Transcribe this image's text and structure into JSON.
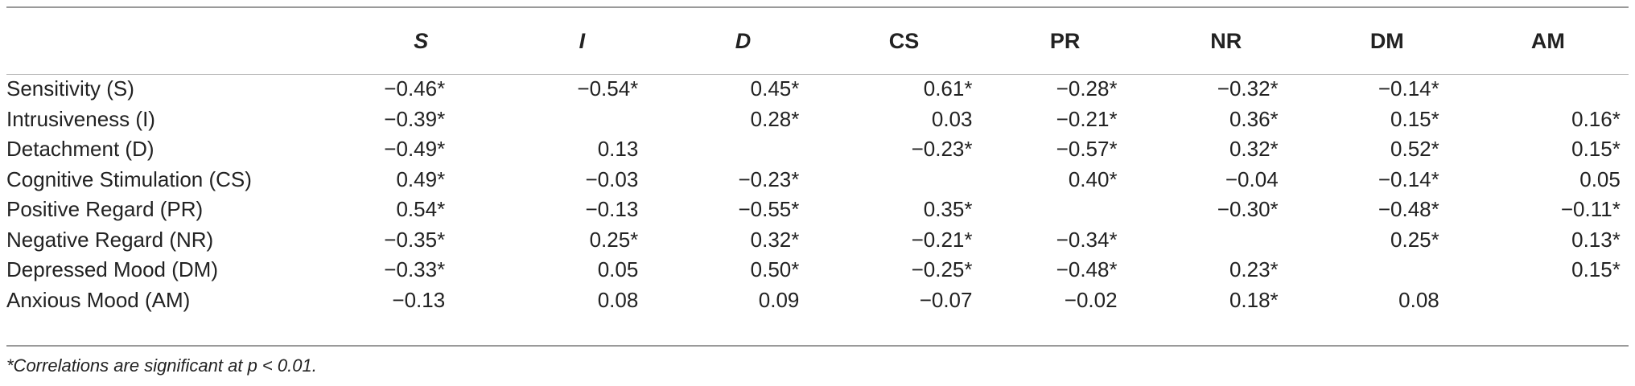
{
  "table": {
    "headers": [
      {
        "label": "S",
        "italic": true
      },
      {
        "label": "I",
        "italic": true
      },
      {
        "label": "D",
        "italic": true
      },
      {
        "label": "CS",
        "italic": false
      },
      {
        "label": "PR",
        "italic": false
      },
      {
        "label": "NR",
        "italic": false
      },
      {
        "label": "DM",
        "italic": false
      },
      {
        "label": "AM",
        "italic": false
      }
    ],
    "rows": [
      {
        "label": "Sensitivity (S)",
        "values": [
          "−0.46*",
          "−0.54*",
          "0.45*",
          "0.61*",
          "−0.28*",
          "−0.32*",
          "−0.14*",
          ""
        ]
      },
      {
        "label": "Intrusiveness (I)",
        "values": [
          "−0.39*",
          "",
          "0.28*",
          "0.03",
          "−0.21*",
          "0.36*",
          "0.15*",
          "0.16*"
        ]
      },
      {
        "label": "Detachment (D)",
        "values": [
          "−0.49*",
          "0.13",
          "",
          "−0.23*",
          "−0.57*",
          "0.32*",
          "0.52*",
          "0.15*"
        ]
      },
      {
        "label": "Cognitive Stimulation (CS)",
        "values": [
          "0.49*",
          "−0.03",
          "−0.23*",
          "",
          "0.40*",
          "−0.04",
          "−0.14*",
          "0.05"
        ]
      },
      {
        "label": "Positive Regard (PR)",
        "values": [
          "0.54*",
          "−0.13",
          "−0.55*",
          "0.35*",
          "",
          "−0.30*",
          "−0.48*",
          "−0.11*"
        ]
      },
      {
        "label": "Negative Regard (NR)",
        "values": [
          "−0.35*",
          "0.25*",
          "0.32*",
          "−0.21*",
          "−0.34*",
          "",
          "0.25*",
          "0.13*"
        ]
      },
      {
        "label": "Depressed Mood (DM)",
        "values": [
          "−0.33*",
          "0.05",
          "0.50*",
          "−0.25*",
          "−0.48*",
          "0.23*",
          "",
          "0.15*"
        ]
      },
      {
        "label": "Anxious Mood (AM)",
        "values": [
          "−0.13",
          "0.08",
          "0.09",
          "−0.07",
          "−0.02",
          "0.18*",
          "0.08",
          ""
        ]
      }
    ]
  },
  "footnote": "*Correlations are significant at p < 0.01."
}
